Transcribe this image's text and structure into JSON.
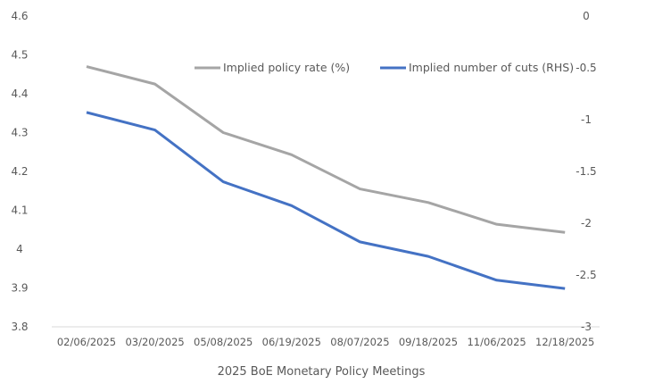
{
  "chart_data": {
    "type": "line",
    "title": "",
    "xlabel": "2025 BoE Monetary Policy Meetings",
    "ylabel": "",
    "y2label": "",
    "categories": [
      "02/06/2025",
      "03/20/2025",
      "05/08/2025",
      "06/19/2025",
      "08/07/2025",
      "09/18/2025",
      "11/06/2025",
      "12/18/2025"
    ],
    "ylim": [
      3.8,
      4.6
    ],
    "y_ticks": [
      "3.8",
      "3.9",
      "4",
      "4.1",
      "4.2",
      "4.3",
      "4.4",
      "4.5",
      "4.6"
    ],
    "y2lim": [
      -3,
      0
    ],
    "y2_ticks": [
      "-3",
      "-2.5",
      "-2",
      "-1.5",
      "-1",
      "-0.5",
      "0"
    ],
    "grid": false,
    "legend_position": "top-right",
    "series": [
      {
        "name": "Implied policy rate (%)",
        "axis": "left",
        "color": "#a5a5a5",
        "values": [
          4.47,
          4.425,
          4.3,
          4.243,
          4.155,
          4.12,
          4.064,
          4.043
        ]
      },
      {
        "name": "Implied number of cuts (RHS)",
        "axis": "right",
        "color": "#4472c4",
        "values": [
          -0.93,
          -1.1,
          -1.6,
          -1.83,
          -2.18,
          -2.32,
          -2.55,
          -2.63
        ]
      }
    ]
  }
}
